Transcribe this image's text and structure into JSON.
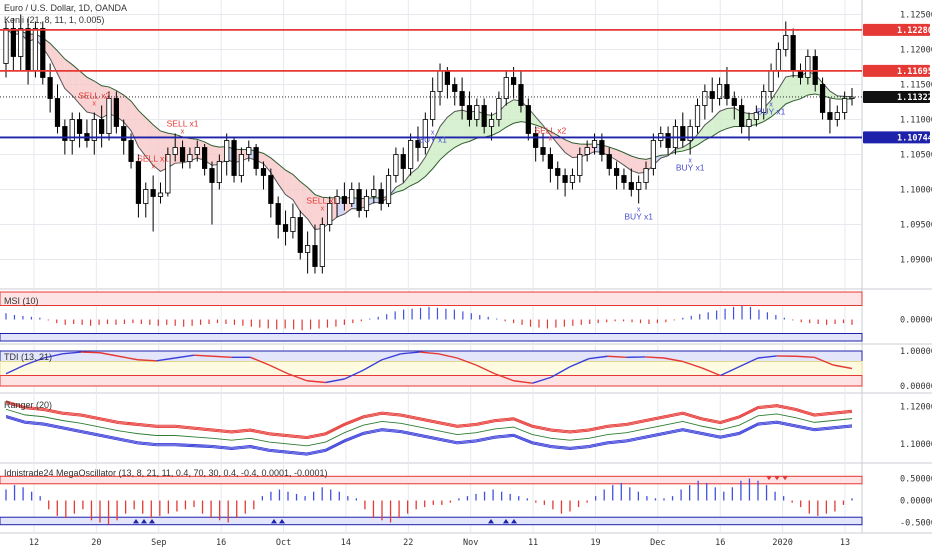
{
  "header": {
    "title": "Euro / U.S. Dollar, 1D, OANDA",
    "indicator": "Kenji (21, 8, 11, 1, 0.005)"
  },
  "colors": {
    "up": "#000000",
    "down": "#000000",
    "red": "#e53935",
    "blue": "#1e22aa",
    "fill_pink": "#f8c8c8",
    "fill_blue": "#c8cdf6",
    "fill_green": "#cdecc4",
    "grid": "#e6e9ee",
    "axis_text": "#333333"
  },
  "price_axis": {
    "ticks": [
      "1.12500",
      "1.12000",
      "1.11500",
      "1.11000",
      "1.10500",
      "1.10000",
      "1.09500",
      "1.09000"
    ],
    "tick_values": [
      1.125,
      1.12,
      1.115,
      1.11,
      1.105,
      1.1,
      1.095,
      1.09
    ],
    "levels": [
      {
        "label": "1.12280",
        "value": 1.1228,
        "color": "#e53935"
      },
      {
        "label": "1.11695",
        "value": 1.11695,
        "color": "#e53935"
      },
      {
        "label": "1.11322",
        "value": 1.11322,
        "color": "#111111"
      },
      {
        "label": "1.10744",
        "value": 1.10744,
        "color": "#1e22aa"
      }
    ]
  },
  "date_axis": [
    "12",
    "20",
    "Sep",
    "16",
    "Oct",
    "14",
    "22",
    "Nov",
    "11",
    "19",
    "Dec",
    "16",
    "2020",
    "13"
  ],
  "signals": [
    {
      "text": "SELL x2",
      "type": "sell"
    },
    {
      "text": "SELL x1",
      "type": "sell"
    },
    {
      "text": "SELL x1",
      "type": "sell"
    },
    {
      "text": "SELL x1",
      "type": "sell"
    },
    {
      "text": "SELL x2",
      "type": "sell"
    },
    {
      "text": "BUY x1",
      "type": "buy"
    },
    {
      "text": "BUY x1",
      "type": "buy"
    },
    {
      "text": "BUY x1",
      "type": "buy"
    },
    {
      "text": "BUY x1",
      "type": "buy"
    }
  ],
  "panes": {
    "msi": {
      "title": "MSI (10)",
      "ticks": [
        "0.00000"
      ]
    },
    "tdi": {
      "title": "TDI (13, 21)",
      "ticks": [
        "1.00000",
        "0.00000"
      ]
    },
    "ranger": {
      "title": "Ranger (20)",
      "ticks": [
        "1.12000",
        "1.10000"
      ]
    },
    "mega": {
      "title": "Idnistrade24 MegaOscillator (13, 8, 21, 11, 0.4, 70, 30, 0.4, -0.4, 0.0001, -0.0001)",
      "ticks": [
        "0.50000",
        "0.00000",
        "-0.50000"
      ]
    }
  },
  "chart_data": {
    "type": "candlestick",
    "title": "Euro / U.S. Dollar, 1D, OANDA",
    "xlabel": "",
    "ylabel": "",
    "ylim": [
      1.0865,
      1.1265
    ],
    "candles": [
      [
        1.118,
        1.124,
        1.116,
        1.123
      ],
      [
        1.123,
        1.1245,
        1.117,
        1.119
      ],
      [
        1.119,
        1.125,
        1.117,
        1.123
      ],
      [
        1.123,
        1.1245,
        1.115,
        1.117
      ],
      [
        1.117,
        1.124,
        1.116,
        1.123
      ],
      [
        1.123,
        1.124,
        1.115,
        1.116
      ],
      [
        1.116,
        1.118,
        1.111,
        1.113
      ],
      [
        1.113,
        1.115,
        1.108,
        1.109
      ],
      [
        1.109,
        1.11,
        1.105,
        1.107
      ],
      [
        1.107,
        1.111,
        1.105,
        1.11
      ],
      [
        1.11,
        1.111,
        1.106,
        1.108
      ],
      [
        1.108,
        1.11,
        1.106,
        1.107
      ],
      [
        1.107,
        1.111,
        1.105,
        1.11
      ],
      [
        1.11,
        1.112,
        1.106,
        1.108
      ],
      [
        1.108,
        1.114,
        1.107,
        1.113
      ],
      [
        1.113,
        1.114,
        1.108,
        1.109
      ],
      [
        1.109,
        1.11,
        1.105,
        1.107
      ],
      [
        1.107,
        1.108,
        1.103,
        1.104
      ],
      [
        1.104,
        1.105,
        1.096,
        1.098
      ],
      [
        1.098,
        1.101,
        1.096,
        1.1
      ],
      [
        1.1,
        1.102,
        1.094,
        1.099
      ],
      [
        1.099,
        1.101,
        1.098,
        1.0995
      ],
      [
        1.0995,
        1.106,
        1.099,
        1.105
      ],
      [
        1.105,
        1.108,
        1.104,
        1.106
      ],
      [
        1.106,
        1.107,
        1.103,
        1.104
      ],
      [
        1.104,
        1.106,
        1.103,
        1.105
      ],
      [
        1.105,
        1.107,
        1.104,
        1.106
      ],
      [
        1.106,
        1.1065,
        1.102,
        1.103
      ],
      [
        1.103,
        1.104,
        1.095,
        1.101
      ],
      [
        1.101,
        1.105,
        1.1,
        1.104
      ],
      [
        1.104,
        1.108,
        1.102,
        1.107
      ],
      [
        1.107,
        1.1075,
        1.101,
        1.102
      ],
      [
        1.102,
        1.106,
        1.101,
        1.105
      ],
      [
        1.105,
        1.107,
        1.104,
        1.106
      ],
      [
        1.106,
        1.1065,
        1.102,
        1.103
      ],
      [
        1.103,
        1.104,
        1.1,
        1.102
      ],
      [
        1.102,
        1.103,
        1.096,
        1.098
      ],
      [
        1.098,
        1.099,
        1.093,
        1.095
      ],
      [
        1.095,
        1.097,
        1.092,
        1.094
      ],
      [
        1.094,
        1.098,
        1.093,
        1.096
      ],
      [
        1.096,
        1.097,
        1.09,
        1.091
      ],
      [
        1.091,
        1.094,
        1.088,
        1.092
      ],
      [
        1.092,
        1.095,
        1.088,
        1.089
      ],
      [
        1.089,
        1.096,
        1.088,
        1.095
      ],
      [
        1.095,
        1.099,
        1.094,
        1.098
      ],
      [
        1.098,
        1.1,
        1.096,
        1.099
      ],
      [
        1.099,
        1.101,
        1.097,
        1.098
      ],
      [
        1.098,
        1.101,
        1.0975,
        1.1
      ],
      [
        1.1,
        1.101,
        1.096,
        1.097
      ],
      [
        1.097,
        1.1,
        1.096,
        1.099
      ],
      [
        1.099,
        1.102,
        1.098,
        1.1
      ],
      [
        1.1,
        1.101,
        1.097,
        1.098
      ],
      [
        1.098,
        1.103,
        1.0975,
        1.102
      ],
      [
        1.102,
        1.106,
        1.101,
        1.105
      ],
      [
        1.105,
        1.106,
        1.101,
        1.103
      ],
      [
        1.103,
        1.108,
        1.102,
        1.107
      ],
      [
        1.107,
        1.109,
        1.104,
        1.106
      ],
      [
        1.106,
        1.111,
        1.105,
        1.11
      ],
      [
        1.11,
        1.116,
        1.109,
        1.114
      ],
      [
        1.114,
        1.118,
        1.112,
        1.117
      ],
      [
        1.117,
        1.1175,
        1.113,
        1.115
      ],
      [
        1.115,
        1.116,
        1.112,
        1.114
      ],
      [
        1.114,
        1.116,
        1.11,
        1.112
      ],
      [
        1.112,
        1.114,
        1.109,
        1.11
      ],
      [
        1.11,
        1.113,
        1.109,
        1.112
      ],
      [
        1.112,
        1.113,
        1.108,
        1.109
      ],
      [
        1.109,
        1.111,
        1.107,
        1.11
      ],
      [
        1.11,
        1.114,
        1.109,
        1.113
      ],
      [
        1.113,
        1.117,
        1.112,
        1.116
      ],
      [
        1.116,
        1.1175,
        1.113,
        1.115
      ],
      [
        1.115,
        1.117,
        1.111,
        1.112
      ],
      [
        1.112,
        1.113,
        1.107,
        1.108
      ],
      [
        1.108,
        1.109,
        1.104,
        1.106
      ],
      [
        1.106,
        1.108,
        1.104,
        1.105
      ],
      [
        1.105,
        1.106,
        1.101,
        1.103
      ],
      [
        1.103,
        1.104,
        1.1,
        1.102
      ],
      [
        1.102,
        1.103,
        1.099,
        1.101
      ],
      [
        1.101,
        1.103,
        1.1,
        1.102
      ],
      [
        1.102,
        1.106,
        1.101,
        1.105
      ],
      [
        1.105,
        1.107,
        1.104,
        1.106
      ],
      [
        1.106,
        1.108,
        1.105,
        1.107
      ],
      [
        1.107,
        1.108,
        1.104,
        1.105
      ],
      [
        1.105,
        1.106,
        1.102,
        1.103
      ],
      [
        1.103,
        1.104,
        1.1,
        1.102
      ],
      [
        1.102,
        1.103,
        1.1,
        1.101
      ],
      [
        1.101,
        1.103,
        1.099,
        1.1
      ],
      [
        1.1,
        1.102,
        1.098,
        1.101
      ],
      [
        1.101,
        1.104,
        1.1,
        1.103
      ],
      [
        1.103,
        1.108,
        1.102,
        1.107
      ],
      [
        1.107,
        1.109,
        1.106,
        1.108
      ],
      [
        1.108,
        1.109,
        1.105,
        1.106
      ],
      [
        1.106,
        1.11,
        1.105,
        1.109
      ],
      [
        1.109,
        1.111,
        1.106,
        1.107
      ],
      [
        1.107,
        1.11,
        1.105,
        1.109
      ],
      [
        1.109,
        1.113,
        1.108,
        1.112
      ],
      [
        1.112,
        1.115,
        1.11,
        1.114
      ],
      [
        1.114,
        1.116,
        1.111,
        1.113
      ],
      [
        1.113,
        1.116,
        1.112,
        1.115
      ],
      [
        1.115,
        1.1175,
        1.112,
        1.113
      ],
      [
        1.113,
        1.114,
        1.11,
        1.112
      ],
      [
        1.112,
        1.113,
        1.108,
        1.109
      ],
      [
        1.109,
        1.111,
        1.107,
        1.11
      ],
      [
        1.11,
        1.112,
        1.109,
        1.111
      ],
      [
        1.111,
        1.115,
        1.11,
        1.114
      ],
      [
        1.114,
        1.118,
        1.113,
        1.117
      ],
      [
        1.117,
        1.121,
        1.116,
        1.12
      ],
      [
        1.12,
        1.124,
        1.119,
        1.122
      ],
      [
        1.122,
        1.123,
        1.116,
        1.117
      ],
      [
        1.117,
        1.118,
        1.115,
        1.116
      ],
      [
        1.116,
        1.12,
        1.115,
        1.119
      ],
      [
        1.119,
        1.12,
        1.114,
        1.115
      ],
      [
        1.115,
        1.116,
        1.11,
        1.111
      ],
      [
        1.111,
        1.113,
        1.108,
        1.11
      ],
      [
        1.11,
        1.112,
        1.109,
        1.111
      ],
      [
        1.111,
        1.114,
        1.11,
        1.113
      ],
      [
        1.113,
        1.1145,
        1.112,
        1.1132
      ]
    ],
    "msi": [
      0.35,
      0.25,
      0.2,
      0.15,
      0.1,
      -0.05,
      -0.2,
      -0.3,
      -0.25,
      -0.3,
      -0.35,
      -0.3,
      -0.25,
      -0.3,
      -0.25,
      -0.2,
      -0.25,
      -0.3,
      -0.35,
      -0.3,
      -0.35,
      -0.4,
      -0.35,
      -0.3,
      -0.25,
      -0.2,
      -0.25,
      -0.3,
      -0.35,
      -0.4,
      -0.45,
      -0.5,
      -0.55,
      -0.5,
      -0.55,
      -0.6,
      -0.55,
      -0.5,
      -0.45,
      -0.4,
      -0.3,
      -0.2,
      -0.1,
      0.05,
      0.15,
      0.3,
      0.45,
      0.55,
      0.6,
      0.65,
      0.7,
      0.65,
      0.6,
      0.55,
      0.45,
      0.35,
      0.25,
      0.15,
      0.05,
      -0.1,
      -0.2,
      -0.3,
      -0.4,
      -0.45,
      -0.5,
      -0.45,
      -0.4,
      -0.35,
      -0.3,
      -0.25,
      -0.2,
      -0.15,
      -0.1,
      -0.1,
      -0.15,
      -0.2,
      -0.25,
      -0.2,
      -0.15,
      -0.05,
      0.1,
      0.2,
      0.3,
      0.4,
      0.5,
      0.6,
      0.7,
      0.75,
      0.7,
      0.55,
      0.4,
      0.25,
      0.1,
      -0.05,
      -0.15,
      -0.2,
      -0.25,
      -0.3,
      -0.25,
      -0.2,
      -0.3
    ],
    "tdi": [
      0.35,
      0.6,
      0.8,
      0.92,
      0.97,
      0.95,
      0.85,
      0.75,
      0.72,
      0.8,
      0.88,
      0.85,
      0.82,
      0.82,
      0.6,
      0.35,
      0.15,
      0.1,
      0.2,
      0.45,
      0.75,
      0.92,
      0.97,
      0.92,
      0.8,
      0.6,
      0.35,
      0.15,
      0.08,
      0.25,
      0.55,
      0.78,
      0.85,
      0.82,
      0.83,
      0.8,
      0.7,
      0.52,
      0.3,
      0.55,
      0.8,
      0.86,
      0.85,
      0.82,
      0.6,
      0.5
    ],
    "ranger": {
      "upper": [
        1.123,
        1.12,
        1.119,
        1.117,
        1.116,
        1.114,
        1.112,
        1.111,
        1.11,
        1.11,
        1.109,
        1.108,
        1.107,
        1.108,
        1.106,
        1.105,
        1.104,
        1.106,
        1.111,
        1.115,
        1.117,
        1.116,
        1.114,
        1.112,
        1.11,
        1.111,
        1.113,
        1.114,
        1.11,
        1.108,
        1.107,
        1.108,
        1.11,
        1.111,
        1.113,
        1.115,
        1.117,
        1.114,
        1.112,
        1.115,
        1.12,
        1.121,
        1.119,
        1.116,
        1.117,
        1.118
      ],
      "lower": [
        1.114,
        1.111,
        1.11,
        1.108,
        1.106,
        1.104,
        1.102,
        1.1,
        1.099,
        1.099,
        1.0985,
        1.098,
        1.097,
        1.098,
        1.096,
        1.095,
        1.094,
        1.096,
        1.101,
        1.105,
        1.107,
        1.106,
        1.104,
        1.102,
        1.1,
        1.101,
        1.103,
        1.104,
        1.1,
        1.098,
        1.097,
        1.098,
        1.1,
        1.101,
        1.103,
        1.105,
        1.107,
        1.105,
        1.103,
        1.105,
        1.11,
        1.111,
        1.109,
        1.107,
        1.108,
        1.109
      ]
    },
    "mega": [
      0.25,
      0.35,
      0.3,
      0.2,
      0.1,
      -0.2,
      -0.35,
      -0.4,
      -0.3,
      -0.2,
      -0.45,
      -0.5,
      -0.55,
      -0.45,
      -0.3,
      -0.2,
      -0.3,
      -0.4,
      -0.35,
      -0.3,
      -0.25,
      -0.2,
      -0.15,
      -0.3,
      -0.4,
      -0.45,
      -0.5,
      -0.4,
      -0.3,
      -0.2,
      0.1,
      0.2,
      0.25,
      0.2,
      0.15,
      0.1,
      0.2,
      0.3,
      0.25,
      0.2,
      0.1,
      0.05,
      -0.2,
      -0.4,
      -0.45,
      -0.5,
      -0.4,
      -0.3,
      -0.2,
      -0.15,
      -0.1,
      -0.1,
      -0.05,
      0.05,
      0.1,
      0.15,
      0.2,
      0.25,
      0.2,
      0.15,
      0.1,
      0.05,
      -0.05,
      -0.1,
      -0.2,
      -0.3,
      -0.25,
      -0.15,
      -0.05,
      0.1,
      0.25,
      0.35,
      0.4,
      0.3,
      0.2,
      0.1,
      0.05,
      0.05,
      0.1,
      0.25,
      0.35,
      0.45,
      0.4,
      0.3,
      0.2,
      0.3,
      0.45,
      0.5,
      0.45,
      0.35,
      0.2,
      0.1,
      -0.05,
      -0.15,
      -0.3,
      -0.35,
      -0.3,
      -0.25,
      -0.1,
      0.05
    ]
  }
}
